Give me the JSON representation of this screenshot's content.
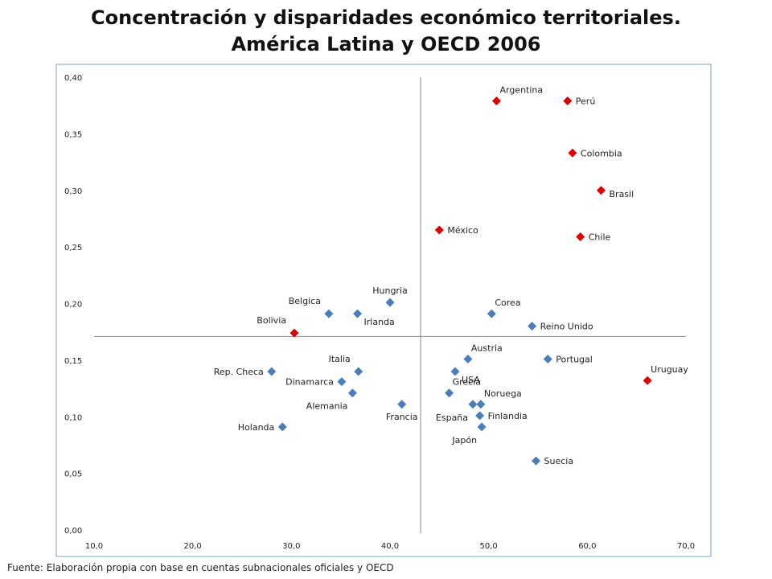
{
  "title_line1": "Concentración y disparidades económico territoriales.",
  "title_line2": "América Latina y OECD 2006",
  "source": "Fuente: Elaboración propia con base en cuentas subnacionales oficiales y OECD",
  "colors": {
    "latam": "#e00000",
    "oecd": "#4a7ebb",
    "frame": "#7aa0c8",
    "axis": "#888888"
  },
  "chart_data": {
    "type": "scatter",
    "title": "Concentración y disparidades económico territoriales. América Latina y OECD 2006",
    "xlabel": "",
    "ylabel": "",
    "xlim": [
      10,
      70
    ],
    "ylim": [
      0,
      0.4
    ],
    "x_ticks": [
      "10,0",
      "20,0",
      "30,0",
      "40,0",
      "50,0",
      "60,0",
      "70,0"
    ],
    "y_ticks": [
      "0,00",
      "0,05",
      "0,10",
      "0,15",
      "0,20",
      "0,25",
      "0,30",
      "0,35",
      "0,40"
    ],
    "x_divider": 43.1,
    "y_divider": 0.171,
    "grid": false,
    "legend": "none",
    "series": [
      {
        "group": "latam",
        "color": "#e00000",
        "points": [
          {
            "label": "Argentina",
            "x": 50.8,
            "y": 0.379,
            "pos": "above-right"
          },
          {
            "label": "Perú",
            "x": 58.0,
            "y": 0.379,
            "pos": "right"
          },
          {
            "label": "Colombia",
            "x": 58.5,
            "y": 0.333,
            "pos": "right"
          },
          {
            "label": "Brasil",
            "x": 61.4,
            "y": 0.3,
            "pos": "right-below"
          },
          {
            "label": "Chile",
            "x": 59.3,
            "y": 0.259,
            "pos": "right"
          },
          {
            "label": "México",
            "x": 45.0,
            "y": 0.265,
            "pos": "right"
          },
          {
            "label": "Bolivia",
            "x": 30.3,
            "y": 0.174,
            "pos": "above-left"
          },
          {
            "label": "Uruguay",
            "x": 66.1,
            "y": 0.132,
            "pos": "above-right"
          }
        ]
      },
      {
        "group": "oecd",
        "color": "#4a7ebb",
        "points": [
          {
            "label": "Hungria",
            "x": 40.0,
            "y": 0.201,
            "pos": "above"
          },
          {
            "label": "Belgica",
            "x": 33.8,
            "y": 0.191,
            "pos": "above-left"
          },
          {
            "label": "Irlanda",
            "x": 36.7,
            "y": 0.191,
            "pos": "below-right"
          },
          {
            "label": "Corea",
            "x": 50.3,
            "y": 0.191,
            "pos": "above-right"
          },
          {
            "label": "Reino Unido",
            "x": 54.4,
            "y": 0.18,
            "pos": "right"
          },
          {
            "label": "Austria",
            "x": 47.9,
            "y": 0.151,
            "pos": "above-right"
          },
          {
            "label": "Portugal",
            "x": 56.0,
            "y": 0.151,
            "pos": "right"
          },
          {
            "label": "USA",
            "x": 46.6,
            "y": 0.14,
            "pos": "below-right"
          },
          {
            "label": "Italia",
            "x": 36.8,
            "y": 0.14,
            "pos": "above-left"
          },
          {
            "label": "Rep. Checa",
            "x": 28.0,
            "y": 0.14,
            "pos": "left"
          },
          {
            "label": "Dinamarca",
            "x": 35.1,
            "y": 0.131,
            "pos": "left"
          },
          {
            "label": "Alemania",
            "x": 36.2,
            "y": 0.121,
            "pos": "below-left"
          },
          {
            "label": "Francia",
            "x": 41.2,
            "y": 0.111,
            "pos": "below"
          },
          {
            "label": "Grecia",
            "x": 46.0,
            "y": 0.121,
            "pos": "above-right"
          },
          {
            "label": "España",
            "x": 48.4,
            "y": 0.111,
            "pos": "below-left"
          },
          {
            "label": "Noruega",
            "x": 49.2,
            "y": 0.111,
            "pos": "above-right"
          },
          {
            "label": "Finlandia",
            "x": 49.1,
            "y": 0.101,
            "pos": "right"
          },
          {
            "label": "Japón",
            "x": 49.3,
            "y": 0.091,
            "pos": "below-left"
          },
          {
            "label": "Holanda",
            "x": 29.1,
            "y": 0.091,
            "pos": "left"
          },
          {
            "label": "Suecia",
            "x": 54.8,
            "y": 0.061,
            "pos": "right"
          }
        ]
      }
    ]
  }
}
